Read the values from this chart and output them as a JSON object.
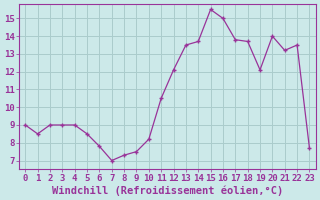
{
  "x": [
    0,
    1,
    2,
    3,
    4,
    5,
    6,
    7,
    8,
    9,
    10,
    11,
    12,
    13,
    14,
    15,
    16,
    17,
    18,
    19,
    20,
    21,
    22,
    23
  ],
  "y": [
    9.0,
    8.5,
    9.0,
    9.0,
    9.0,
    8.5,
    7.8,
    7.0,
    7.3,
    7.5,
    8.2,
    10.5,
    12.1,
    13.5,
    13.7,
    15.5,
    15.0,
    13.8,
    13.7,
    12.1,
    14.0,
    13.2,
    13.5,
    7.7
  ],
  "line_color": "#993399",
  "marker": "+",
  "marker_size": 3,
  "xlabel": "Windchill (Refroidissement éolien,°C)",
  "ylim": [
    6.5,
    15.8
  ],
  "xlim": [
    -0.5,
    23.5
  ],
  "yticks": [
    7,
    8,
    9,
    10,
    11,
    12,
    13,
    14,
    15
  ],
  "xticks": [
    0,
    1,
    2,
    3,
    4,
    5,
    6,
    7,
    8,
    9,
    10,
    11,
    12,
    13,
    14,
    15,
    16,
    17,
    18,
    19,
    20,
    21,
    22,
    23
  ],
  "background_color": "#cce9e9",
  "grid_color": "#aacccc",
  "tick_label_fontsize": 6.5,
  "xlabel_fontsize": 7.5
}
